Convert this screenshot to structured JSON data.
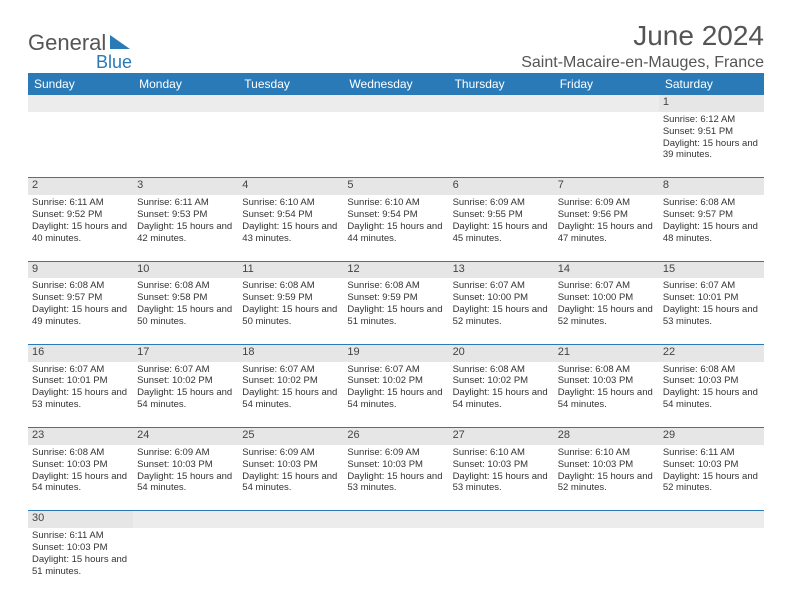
{
  "logo": {
    "text1": "General",
    "text2": "Blue"
  },
  "title": "June 2024",
  "location": "Saint-Macaire-en-Mauges, France",
  "headers": [
    "Sunday",
    "Monday",
    "Tuesday",
    "Wednesday",
    "Thursday",
    "Friday",
    "Saturday"
  ],
  "header_bg": "#2a7ab8",
  "weeks": [
    [
      null,
      null,
      null,
      null,
      null,
      null,
      {
        "d": "1",
        "r": "6:12 AM",
        "s": "9:51 PM",
        "l": "15 hours and 39 minutes."
      }
    ],
    [
      {
        "d": "2",
        "r": "6:11 AM",
        "s": "9:52 PM",
        "l": "15 hours and 40 minutes."
      },
      {
        "d": "3",
        "r": "6:11 AM",
        "s": "9:53 PM",
        "l": "15 hours and 42 minutes."
      },
      {
        "d": "4",
        "r": "6:10 AM",
        "s": "9:54 PM",
        "l": "15 hours and 43 minutes."
      },
      {
        "d": "5",
        "r": "6:10 AM",
        "s": "9:54 PM",
        "l": "15 hours and 44 minutes."
      },
      {
        "d": "6",
        "r": "6:09 AM",
        "s": "9:55 PM",
        "l": "15 hours and 45 minutes."
      },
      {
        "d": "7",
        "r": "6:09 AM",
        "s": "9:56 PM",
        "l": "15 hours and 47 minutes."
      },
      {
        "d": "8",
        "r": "6:08 AM",
        "s": "9:57 PM",
        "l": "15 hours and 48 minutes."
      }
    ],
    [
      {
        "d": "9",
        "r": "6:08 AM",
        "s": "9:57 PM",
        "l": "15 hours and 49 minutes."
      },
      {
        "d": "10",
        "r": "6:08 AM",
        "s": "9:58 PM",
        "l": "15 hours and 50 minutes."
      },
      {
        "d": "11",
        "r": "6:08 AM",
        "s": "9:59 PM",
        "l": "15 hours and 50 minutes."
      },
      {
        "d": "12",
        "r": "6:08 AM",
        "s": "9:59 PM",
        "l": "15 hours and 51 minutes."
      },
      {
        "d": "13",
        "r": "6:07 AM",
        "s": "10:00 PM",
        "l": "15 hours and 52 minutes."
      },
      {
        "d": "14",
        "r": "6:07 AM",
        "s": "10:00 PM",
        "l": "15 hours and 52 minutes."
      },
      {
        "d": "15",
        "r": "6:07 AM",
        "s": "10:01 PM",
        "l": "15 hours and 53 minutes."
      }
    ],
    [
      {
        "d": "16",
        "r": "6:07 AM",
        "s": "10:01 PM",
        "l": "15 hours and 53 minutes."
      },
      {
        "d": "17",
        "r": "6:07 AM",
        "s": "10:02 PM",
        "l": "15 hours and 54 minutes."
      },
      {
        "d": "18",
        "r": "6:07 AM",
        "s": "10:02 PM",
        "l": "15 hours and 54 minutes."
      },
      {
        "d": "19",
        "r": "6:07 AM",
        "s": "10:02 PM",
        "l": "15 hours and 54 minutes."
      },
      {
        "d": "20",
        "r": "6:08 AM",
        "s": "10:02 PM",
        "l": "15 hours and 54 minutes."
      },
      {
        "d": "21",
        "r": "6:08 AM",
        "s": "10:03 PM",
        "l": "15 hours and 54 minutes."
      },
      {
        "d": "22",
        "r": "6:08 AM",
        "s": "10:03 PM",
        "l": "15 hours and 54 minutes."
      }
    ],
    [
      {
        "d": "23",
        "r": "6:08 AM",
        "s": "10:03 PM",
        "l": "15 hours and 54 minutes."
      },
      {
        "d": "24",
        "r": "6:09 AM",
        "s": "10:03 PM",
        "l": "15 hours and 54 minutes."
      },
      {
        "d": "25",
        "r": "6:09 AM",
        "s": "10:03 PM",
        "l": "15 hours and 54 minutes."
      },
      {
        "d": "26",
        "r": "6:09 AM",
        "s": "10:03 PM",
        "l": "15 hours and 53 minutes."
      },
      {
        "d": "27",
        "r": "6:10 AM",
        "s": "10:03 PM",
        "l": "15 hours and 53 minutes."
      },
      {
        "d": "28",
        "r": "6:10 AM",
        "s": "10:03 PM",
        "l": "15 hours and 52 minutes."
      },
      {
        "d": "29",
        "r": "6:11 AM",
        "s": "10:03 PM",
        "l": "15 hours and 52 minutes."
      }
    ],
    [
      {
        "d": "30",
        "r": "6:11 AM",
        "s": "10:03 PM",
        "l": "15 hours and 51 minutes."
      },
      null,
      null,
      null,
      null,
      null,
      null
    ]
  ]
}
